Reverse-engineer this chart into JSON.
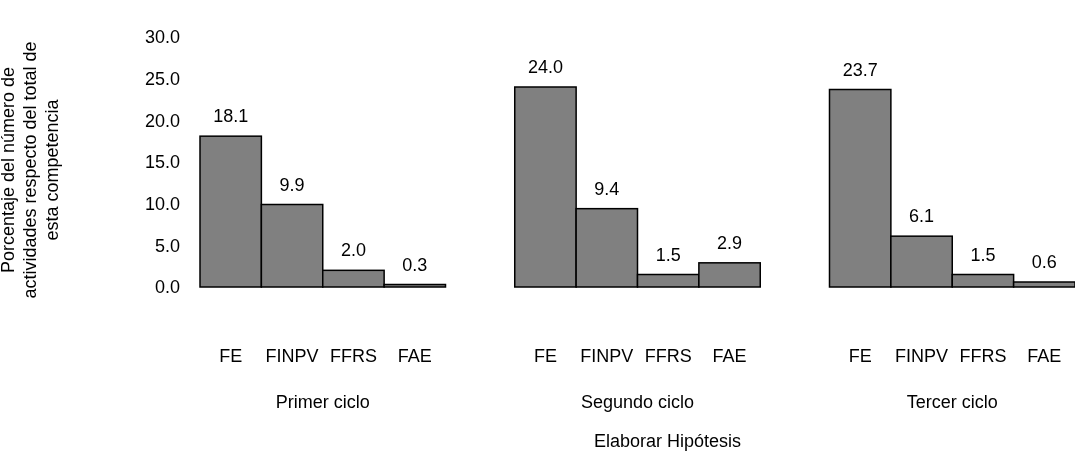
{
  "chart_data": {
    "type": "bar",
    "xlabel": "Elaborar Hipótesis",
    "ylabel": "Porcentaje del número de actividades respecto del total de esta competencia",
    "categories": [
      "FE",
      "FINPV",
      "FFRS",
      "FAE",
      "FE",
      "FINPV",
      "FFRS",
      "FAE",
      "FE",
      "FINPV",
      "FFRS",
      "FAE"
    ],
    "values": [
      18.1,
      9.9,
      2.0,
      0.3,
      24.0,
      9.4,
      1.5,
      2.9,
      23.7,
      6.1,
      1.5,
      0.6
    ],
    "color": "#808080",
    "value_labels": [
      "18.1",
      "9.9",
      "2.0",
      "0.3",
      "24.0",
      "9.4",
      "1.5",
      "2.9",
      "23.7",
      "6.1",
      "1.5",
      "0.6"
    ],
    "ylim": [
      0,
      30
    ],
    "yticks": [
      {
        "value": 0,
        "label": "0.0"
      },
      {
        "value": 5,
        "label": "5.0"
      },
      {
        "value": 10,
        "label": "10.0"
      },
      {
        "value": 15,
        "label": "15.0"
      },
      {
        "value": 20,
        "label": "20.0"
      },
      {
        "value": 25,
        "label": "25.0"
      },
      {
        "value": 30,
        "label": "30.0"
      }
    ],
    "annotations": [
      "Primer ciclo",
      "Segundo ciclo",
      "Tercer ciclo"
    ],
    "grid": false
  }
}
